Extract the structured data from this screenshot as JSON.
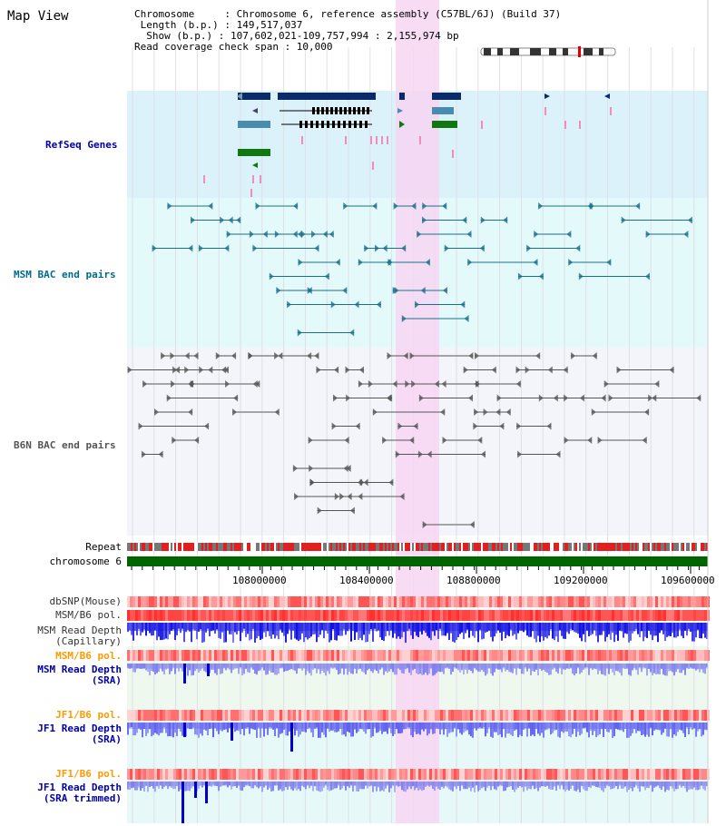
{
  "header": {
    "title": "Map View",
    "info_lines": [
      "Chromosome     : Chromosome 6, reference assembly (C57BL/6J) (Build 37)",
      " Length (b.p.) : 149,517,037",
      "  Show (b.p.) : 107,602,021-109,757,994 : 2,155,974 bp",
      "Read coverage check span : 10,000"
    ]
  },
  "tracks": {
    "refseq": "RefSeq Genes",
    "msm_bac": "MSM BAC end pairs",
    "b6n_bac": "B6N BAC end pairs",
    "repeat": "Repeat",
    "chromosome": "chromosome 6",
    "dbsnp": "dbSNP(Mouse)",
    "msm_b6_pol_1": "MSM/B6 pol.",
    "msm_depth_cap_1": "MSM Read Depth",
    "msm_depth_cap_2": "(Capillary)",
    "msm_b6_pol_2": "MSM/B6 pol.",
    "msm_depth_sra_1": "MSM Read Depth",
    "msm_depth_sra_2": "(SRA)",
    "jf1_b6_pol_1": "JF1/B6 pol.",
    "jf1_depth_sra_1": "JF1 Read Depth",
    "jf1_depth_sra_2": "(SRA)",
    "jf1_b6_pol_2": "JF1/B6 pol.",
    "jf1_depth_trim_1": "JF1 Read Depth",
    "jf1_depth_trim_2": "(SRA trimmed)"
  },
  "axis": {
    "ticks": [
      "108000000",
      "108400000",
      "108800000",
      "109200000",
      "109600000"
    ]
  },
  "colors": {
    "refseq_label": "#0000aa",
    "msm_label": "#006b8a",
    "b6n_label": "#555555",
    "pol_label": "#ff9900",
    "depth_label": "#0000aa",
    "highlight": "#f7d6f2",
    "refseq_bg": "#dcf2fa",
    "msm_bg": "#e4fafa",
    "b6n_bg": "#f4f5fb",
    "chrom_bar": "#006400"
  }
}
